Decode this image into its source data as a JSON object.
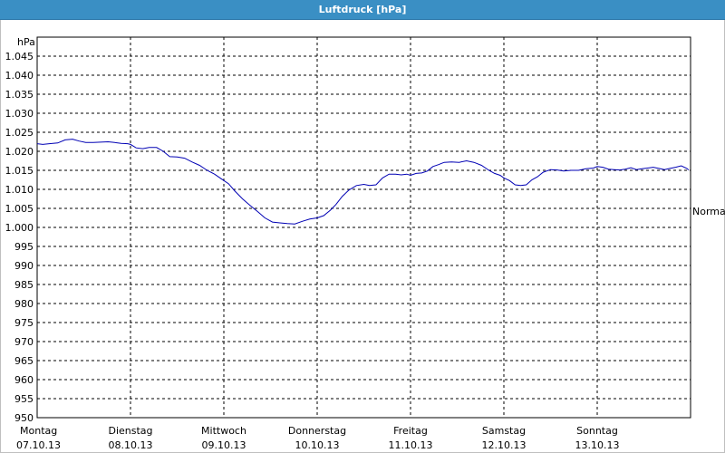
{
  "window": {
    "title": "Luftdruck [hPa]"
  },
  "chart_data": {
    "type": "line",
    "title": "Luftdruck [hPa]",
    "ylabel": "hPa",
    "ylim": [
      950,
      1050
    ],
    "y_ticks": [
      "950",
      "955",
      "960",
      "965",
      "970",
      "975",
      "980",
      "985",
      "990",
      "995",
      "1.000",
      "1.005",
      "1.010",
      "1.015",
      "1.020",
      "1.025",
      "1.030",
      "1.035",
      "1.040",
      "1.045"
    ],
    "x_labels": [
      {
        "day": "Montag",
        "date": "07.10.13"
      },
      {
        "day": "Dienstag",
        "date": "08.10.13"
      },
      {
        "day": "Mittwoch",
        "date": "09.10.13"
      },
      {
        "day": "Donnerstag",
        "date": "10.10.13"
      },
      {
        "day": "Freitag",
        "date": "11.10.13"
      },
      {
        "day": "Samstag",
        "date": "12.10.13"
      },
      {
        "day": "Sonntag",
        "date": "13.10.13"
      }
    ],
    "right_label": "Normal",
    "grid": true,
    "line_color": "#0000b4",
    "series": [
      {
        "x": [
          0,
          0.06,
          0.13,
          0.22,
          0.3,
          0.38,
          0.45,
          0.52,
          0.6,
          0.68,
          0.76,
          0.83,
          0.9,
          0.97,
          1.0,
          1.06,
          1.13,
          1.2,
          1.28,
          1.35,
          1.42,
          1.5,
          1.58,
          1.66,
          1.74,
          1.82,
          1.9,
          1.97,
          2.05,
          2.12,
          2.2,
          2.28,
          2.36,
          2.44,
          2.52,
          2.6,
          2.68,
          2.76,
          2.84,
          2.92,
          3.0,
          3.07,
          3.14,
          3.2,
          3.27,
          3.34,
          3.42,
          3.5,
          3.56,
          3.63,
          3.7,
          3.77,
          3.84,
          3.9,
          3.96,
          4.0,
          4.06,
          4.12,
          4.18,
          4.24,
          4.3,
          4.36,
          4.44,
          4.52,
          4.6,
          4.68,
          4.76,
          4.84,
          4.9,
          4.96,
          5.0,
          5.06,
          5.12,
          5.18,
          5.24,
          5.3,
          5.36,
          5.42,
          5.5,
          5.57,
          5.64,
          5.72,
          5.8,
          5.88,
          5.96,
          6.0,
          6.06,
          6.12,
          6.18,
          6.24,
          6.3,
          6.36,
          6.42,
          6.48,
          6.54,
          6.6,
          6.66,
          6.72,
          6.78,
          6.84,
          6.9,
          6.96,
          6.98
        ],
        "y": [
          1022,
          1021.8,
          1022,
          1022.2,
          1023,
          1023.2,
          1022.7,
          1022.3,
          1022.3,
          1022.4,
          1022.5,
          1022.3,
          1022.1,
          1022,
          1021.8,
          1020.9,
          1020.7,
          1021,
          1021,
          1020,
          1018.6,
          1018.5,
          1018.2,
          1017.2,
          1016.3,
          1015,
          1014,
          1012.8,
          1011.5,
          1009.5,
          1007.5,
          1005.8,
          1004.2,
          1002.5,
          1001.4,
          1001.2,
          1001,
          1000.9,
          1001.6,
          1002.2,
          1002.5,
          1003.1,
          1004.5,
          1006,
          1008.2,
          1009.8,
          1011,
          1011.3,
          1011,
          1011.2,
          1013,
          1014,
          1014,
          1013.8,
          1014,
          1013.7,
          1014.2,
          1014.3,
          1014.8,
          1016,
          1016.5,
          1017.1,
          1017.2,
          1017.1,
          1017.5,
          1017.1,
          1016.3,
          1015,
          1014.2,
          1013.7,
          1013,
          1012.3,
          1011.2,
          1011,
          1011.2,
          1012.5,
          1013.3,
          1014.5,
          1015.2,
          1015.1,
          1014.8,
          1015,
          1015,
          1015.4,
          1015.6,
          1016,
          1015.8,
          1015.3,
          1015.2,
          1015.1,
          1015.3,
          1015.7,
          1015.2,
          1015.4,
          1015.6,
          1015.8,
          1015.5,
          1015.2,
          1015.5,
          1015.8,
          1016.2,
          1015.5,
          1015.1
        ]
      }
    ]
  }
}
